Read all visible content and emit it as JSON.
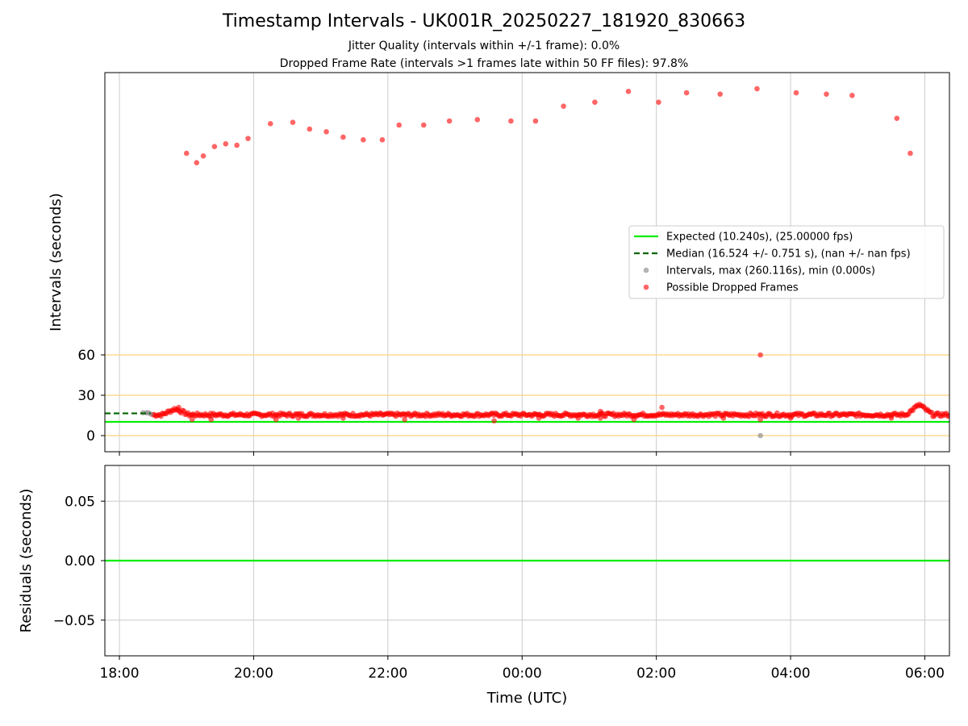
{
  "title": "Timestamp Intervals - UK001R_20250227_181920_830663",
  "subtitle_1": "Jitter Quality (intervals within +/-1 frame): 0.0%",
  "subtitle_2": "Dropped Frame Rate (intervals >1 frames late within 50 FF files): 97.8%",
  "colors": {
    "expected": "#00ee00",
    "median": "#006400",
    "intervals": "#808080",
    "dropped": "#ff0000",
    "reference_lines": "#ffd27f",
    "grid": "#cccccc"
  },
  "chart_data": [
    {
      "type": "scatter",
      "ylabel": "Intervals (seconds)",
      "xlim": [
        "17:47",
        "06:22"
      ],
      "ylim": [
        -12,
        270
      ],
      "x_ticks": [
        "18:00",
        "20:00",
        "22:00",
        "00:00",
        "02:00",
        "04:00",
        "06:00"
      ],
      "y_ticks": [
        0,
        30,
        60
      ],
      "reference_lines_y": [
        0,
        30,
        60
      ],
      "grid": true,
      "legend_position": "center-right",
      "legend": [
        "Expected (10.240s), (25.00000 fps)",
        "Median (16.524 +/- 0.751 s), (nan +/- nan fps)",
        "Intervals, max (260.116s), min (0.000s)",
        "Possible Dropped Frames"
      ],
      "expected_line": {
        "y": 10.24
      },
      "median_line": {
        "y": 16.524,
        "x_start": "17:47",
        "x_end": "18:28"
      },
      "series": [
        {
          "name": "Possible Dropped Frames",
          "points": [
            [
              "19:00",
              210
            ],
            [
              "19:09",
              203
            ],
            [
              "19:15",
              208
            ],
            [
              "19:25",
              215
            ],
            [
              "19:35",
              217
            ],
            [
              "19:45",
              216
            ],
            [
              "19:55",
              221
            ],
            [
              "20:15",
              232
            ],
            [
              "20:35",
              233
            ],
            [
              "20:50",
              228
            ],
            [
              "21:05",
              226
            ],
            [
              "21:20",
              222
            ],
            [
              "21:38",
              220
            ],
            [
              "21:55",
              220
            ],
            [
              "22:10",
              231
            ],
            [
              "22:32",
              231
            ],
            [
              "22:55",
              234
            ],
            [
              "23:20",
              235
            ],
            [
              "23:50",
              234
            ],
            [
              "00:12",
              234
            ],
            [
              "00:37",
              245
            ],
            [
              "01:05",
              248
            ],
            [
              "01:35",
              256
            ],
            [
              "02:02",
              248
            ],
            [
              "02:27",
              255
            ],
            [
              "02:57",
              254
            ],
            [
              "03:30",
              258
            ],
            [
              "04:05",
              255
            ],
            [
              "04:32",
              254
            ],
            [
              "04:55",
              253
            ],
            [
              "05:35",
              236
            ],
            [
              "05:47",
              210
            ],
            [
              "03:33",
              60
            ],
            [
              "03:33",
              12
            ],
            [
              "02:05",
              21
            ],
            [
              "18:53",
              21
            ],
            [
              "19:05",
              12
            ],
            [
              "19:22",
              12
            ],
            [
              "20:20",
              12
            ],
            [
              "20:40",
              13
            ],
            [
              "21:20",
              13
            ],
            [
              "22:15",
              12
            ],
            [
              "23:35",
              11
            ],
            [
              "00:15",
              13
            ],
            [
              "00:50",
              13
            ],
            [
              "01:10",
              18
            ],
            [
              "01:10",
              13
            ],
            [
              "01:40",
              12
            ],
            [
              "03:00",
              13
            ],
            [
              "04:00",
              13
            ],
            [
              "05:30",
              13
            ]
          ],
          "band": {
            "x_start": "18:30",
            "x_end": "06:22",
            "y_center": 15.5,
            "y_spread": 2.5
          },
          "spikes": [
            [
              "18:50",
              20
            ],
            [
              "05:55",
              23
            ]
          ]
        },
        {
          "name": "Intervals, max (260.116s), min (0.000s)",
          "points": [
            [
              "18:21",
              17
            ],
            [
              "18:24",
              17
            ],
            [
              "18:26",
              17
            ],
            [
              "18:28",
              16
            ],
            [
              "03:33",
              0
            ]
          ]
        }
      ]
    },
    {
      "type": "line",
      "xlabel": "Time (UTC)",
      "ylabel": "Residuals (seconds)",
      "xlim": [
        "17:47",
        "06:22"
      ],
      "ylim": [
        -0.08,
        0.08
      ],
      "x_ticks": [
        "18:00",
        "20:00",
        "22:00",
        "00:00",
        "02:00",
        "04:00",
        "06:00"
      ],
      "y_ticks": [
        "0.05",
        "0.00",
        "−0.05"
      ],
      "grid": true,
      "series": [
        {
          "values": [
            0,
            0
          ]
        }
      ]
    }
  ]
}
